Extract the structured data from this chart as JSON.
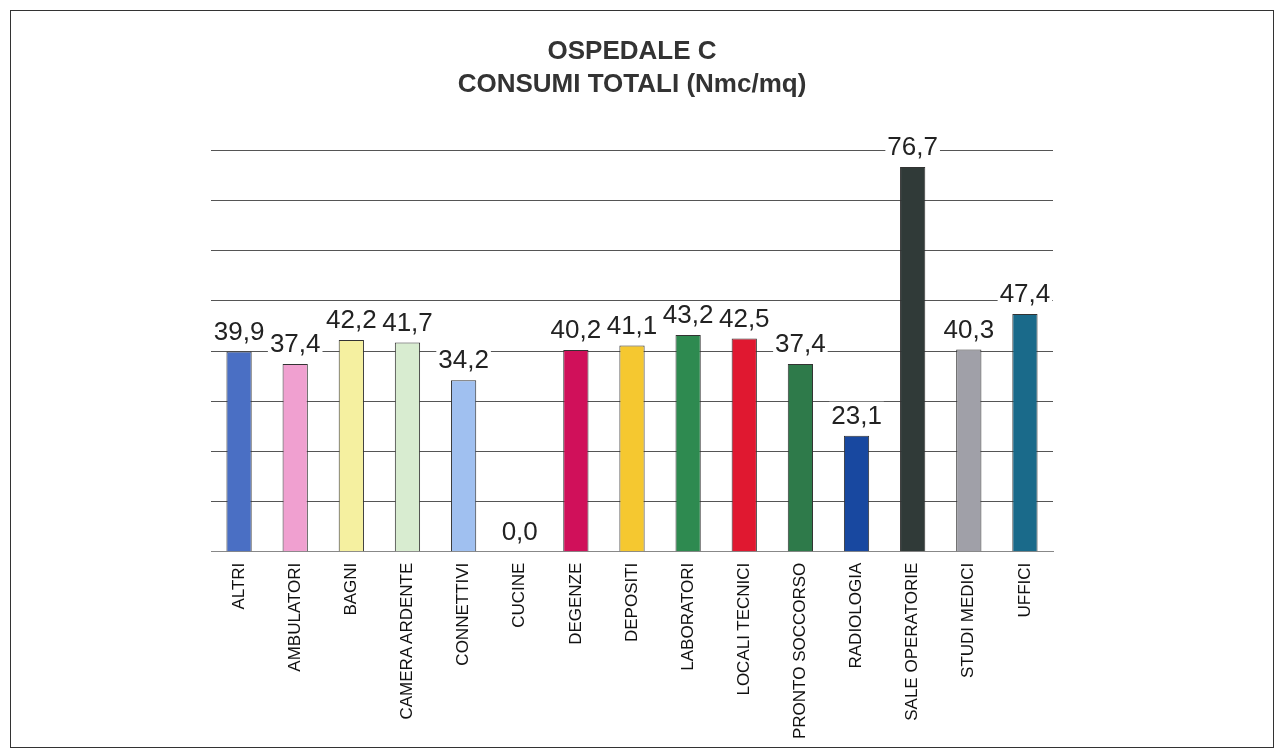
{
  "chart_data": {
    "type": "bar",
    "title": "OSPEDALE C",
    "subtitle": "CONSUMI TOTALI (Nmc/mq)",
    "categories": [
      "ALTRI",
      "AMBULATORI",
      "BAGNI",
      "CAMERA ARDENTE",
      "CONNETTIVI",
      "CUCINE",
      "DEGENZE",
      "DEPOSITI",
      "LABORATORI",
      "LOCALI TECNICI",
      "PRONTO SOCCORSO",
      "RADIOLOGIA",
      "SALE OPERATORIE",
      "STUDI MEDICI",
      "UFFICI"
    ],
    "values": [
      39.9,
      37.4,
      42.2,
      41.7,
      34.2,
      0.0,
      40.2,
      41.1,
      43.2,
      42.5,
      37.4,
      23.1,
      76.7,
      40.3,
      47.4
    ],
    "value_labels": [
      "39,9",
      "37,4",
      "42,2",
      "41,7",
      "34,2",
      "0,0",
      "40,2",
      "41,1",
      "43,2",
      "42,5",
      "37,4",
      "23,1",
      "76,7",
      "40,3",
      "47,4"
    ],
    "colors": [
      "#4a6fc4",
      "#f0a0d0",
      "#f5f0a0",
      "#d8ecd0",
      "#a0c0f0",
      "#6a70c0",
      "#d0105a",
      "#f5c830",
      "#2e8a50",
      "#e01830",
      "#2e7a4a",
      "#1848a0",
      "#303a38",
      "#a0a0a8",
      "#1a6a8a"
    ],
    "ylim": [
      0,
      80
    ],
    "yticks": [
      {
        "value": 0,
        "label": null
      },
      {
        "value": 10,
        "label": null
      },
      {
        "value": 20,
        "label": null
      },
      {
        "value": 30,
        "label": null
      },
      {
        "value": 40,
        "label": null
      },
      {
        "value": 50,
        "label": null
      },
      {
        "value": 60,
        "label": null
      },
      {
        "value": 70,
        "label": null
      },
      {
        "value": 80,
        "label": null
      }
    ],
    "tick_labels": "x",
    "grid": "y",
    "legend": false
  }
}
